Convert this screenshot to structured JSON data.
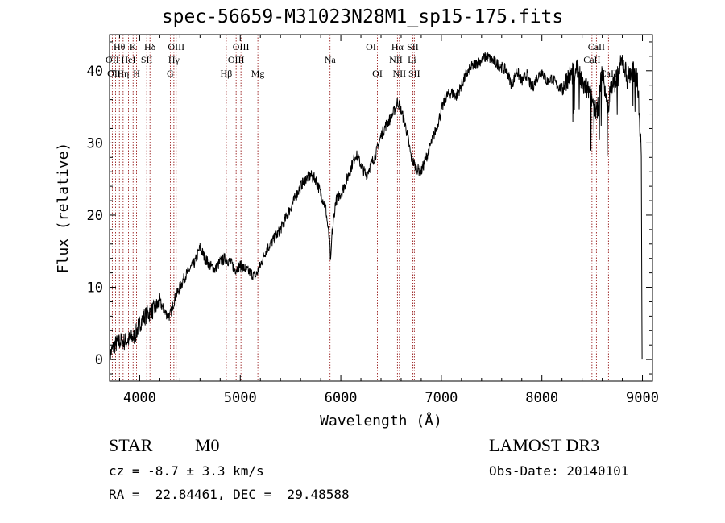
{
  "chart_data": {
    "type": "line",
    "title": "spec-56659-M31023N28M1_sp15-175.fits",
    "xlabel": "Wavelength (Å)",
    "ylabel": "Flux (relative)",
    "xlim": [
      3700,
      9100
    ],
    "ylim": [
      -3,
      45
    ],
    "xticks": [
      4000,
      5000,
      6000,
      7000,
      8000,
      9000
    ],
    "yticks": [
      0,
      10,
      20,
      30,
      40
    ],
    "series": [
      {
        "name": "flux",
        "x": [
          3700,
          3750,
          3800,
          3850,
          3900,
          3950,
          4000,
          4050,
          4100,
          4150,
          4200,
          4250,
          4300,
          4350,
          4400,
          4450,
          4500,
          4550,
          4600,
          4650,
          4700,
          4750,
          4800,
          4850,
          4900,
          4950,
          5000,
          5050,
          5100,
          5150,
          5200,
          5250,
          5300,
          5350,
          5400,
          5450,
          5500,
          5550,
          5600,
          5650,
          5700,
          5750,
          5800,
          5850,
          5890,
          5900,
          5910,
          5950,
          6000,
          6050,
          6100,
          6150,
          6200,
          6250,
          6300,
          6350,
          6400,
          6450,
          6500,
          6550,
          6563,
          6600,
          6650,
          6700,
          6750,
          6800,
          6850,
          6900,
          6950,
          7000,
          7050,
          7100,
          7150,
          7200,
          7250,
          7300,
          7350,
          7400,
          7450,
          7500,
          7550,
          7600,
          7650,
          7700,
          7750,
          7800,
          7850,
          7900,
          7950,
          8000,
          8050,
          8100,
          8150,
          8200,
          8250,
          8300,
          8350,
          8400,
          8450,
          8500,
          8550,
          8600,
          8650,
          8700,
          8750,
          8800,
          8850,
          8900,
          8950,
          8990
        ],
        "y": [
          0.5,
          2.0,
          2.5,
          2.5,
          2.8,
          3.2,
          5.0,
          6.0,
          6.5,
          7.0,
          8.0,
          6.5,
          6.0,
          8.5,
          10.0,
          11.5,
          12.5,
          13.5,
          15.5,
          14.0,
          13.0,
          12.5,
          13.5,
          14.0,
          13.5,
          12.5,
          13.0,
          12.5,
          12.0,
          11.5,
          13.0,
          15.0,
          16.0,
          17.0,
          18.0,
          19.5,
          21.0,
          22.5,
          24.0,
          25.0,
          25.5,
          25.0,
          23.0,
          21.0,
          16.0,
          13.0,
          17.0,
          22.0,
          23.0,
          24.5,
          26.5,
          28.5,
          27.0,
          25.5,
          27.0,
          28.5,
          31.0,
          32.5,
          33.5,
          35.0,
          35.8,
          34.5,
          32.0,
          28.0,
          26.5,
          26.0,
          28.0,
          30.0,
          32.0,
          34.5,
          36.5,
          37.0,
          36.5,
          38.0,
          39.5,
          40.5,
          41.0,
          41.5,
          42.0,
          41.5,
          41.0,
          40.5,
          40.0,
          38.0,
          40.0,
          38.5,
          39.5,
          37.5,
          39.0,
          40.0,
          38.5,
          39.0,
          38.0,
          37.5,
          39.0,
          39.5,
          40.5,
          38.0,
          37.5,
          36.0,
          34.0,
          40.0,
          35.0,
          38.0,
          39.0,
          41.5,
          39.0,
          40.0,
          39.0,
          28.0
        ]
      }
    ],
    "annotation_color": "#8b0000",
    "lines": [
      {
        "label": "Hθ",
        "wave": 3798,
        "row": 0
      },
      {
        "label": "OII",
        "wave": 3727,
        "row": 1
      },
      {
        "label": "OIII",
        "wave": 3760,
        "row": 2
      },
      {
        "label": "K",
        "wave": 3934,
        "row": 0
      },
      {
        "label": "HeI",
        "wave": 3888,
        "row": 1
      },
      {
        "label": "Hη",
        "wave": 3835,
        "row": 2
      },
      {
        "label": "SII",
        "wave": 4070,
        "row": 1
      },
      {
        "label": "H",
        "wave": 3969,
        "row": 2
      },
      {
        "label": "Hδ",
        "wave": 4102,
        "row": 0
      },
      {
        "label": "OIII",
        "wave": 4363,
        "row": 0
      },
      {
        "label": "Hγ",
        "wave": 4340,
        "row": 1
      },
      {
        "label": "G",
        "wave": 4304,
        "row": 2
      },
      {
        "label": "OIII",
        "wave": 5007,
        "row": 0
      },
      {
        "label": "OIII",
        "wave": 4959,
        "row": 1
      },
      {
        "label": "Hβ",
        "wave": 4861,
        "row": 2
      },
      {
        "label": "Mg",
        "wave": 5175,
        "row": 2
      },
      {
        "label": "Na",
        "wave": 5893,
        "row": 1
      },
      {
        "label": "OI",
        "wave": 6300,
        "row": 0
      },
      {
        "label": "OI",
        "wave": 6364,
        "row": 2
      },
      {
        "label": "Hα",
        "wave": 6563,
        "row": 0
      },
      {
        "label": "SII",
        "wave": 6716,
        "row": 0
      },
      {
        "label": "NII",
        "wave": 6548,
        "row": 1
      },
      {
        "label": "Li",
        "wave": 6708,
        "row": 1
      },
      {
        "label": "NII",
        "wave": 6583,
        "row": 2
      },
      {
        "label": "SII",
        "wave": 6731,
        "row": 2
      },
      {
        "label": "CaII",
        "wave": 8542,
        "row": 0
      },
      {
        "label": "CaII",
        "wave": 8498,
        "row": 1
      },
      {
        "label": "CaII",
        "wave": 8662,
        "row": 2
      }
    ]
  },
  "info": {
    "class_label": "STAR",
    "subclass": "M0",
    "survey": "LAMOST DR3",
    "cz": "cz = -8.7 ± 3.3 km/s",
    "obs_date": "Obs-Date: 20140101",
    "coords": "RA =  22.84461, DEC =  29.48588"
  }
}
